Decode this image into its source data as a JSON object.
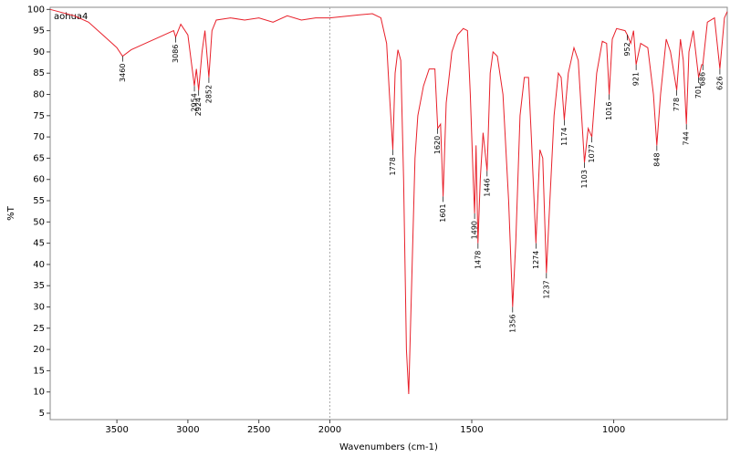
{
  "chart_data": {
    "type": "line",
    "title": "aohua4",
    "x_label": "Wavenumbers (cm-1)",
    "y_label": "%T",
    "xlim": [
      3970,
      600
    ],
    "x_scale_change": 2000,
    "x_expansion": 2,
    "xticks": [
      3500,
      3000,
      2500,
      2000,
      1500,
      1000
    ],
    "ylim": [
      3.5,
      100.5
    ],
    "yticks": [
      5,
      10,
      15,
      20,
      25,
      30,
      35,
      40,
      45,
      50,
      55,
      60,
      65,
      70,
      75,
      80,
      85,
      90,
      95,
      100
    ],
    "series": [
      {
        "name": "aohua4",
        "color": "#e8202a",
        "x": [
          3970,
          3800,
          3700,
          3600,
          3500,
          3460,
          3400,
          3300,
          3200,
          3100,
          3086,
          3050,
          3000,
          2954,
          2940,
          2924,
          2900,
          2880,
          2852,
          2830,
          2800,
          2700,
          2600,
          2500,
          2400,
          2300,
          2200,
          2100,
          2000,
          1900,
          1850,
          1820,
          1800,
          1790,
          1778,
          1770,
          1760,
          1750,
          1740,
          1730,
          1722,
          1710,
          1700,
          1690,
          1670,
          1650,
          1630,
          1620,
          1610,
          1601,
          1590,
          1570,
          1550,
          1530,
          1515,
          1505,
          1495,
          1490,
          1485,
          1478,
          1470,
          1460,
          1446,
          1435,
          1425,
          1410,
          1390,
          1370,
          1356,
          1345,
          1330,
          1315,
          1300,
          1290,
          1274,
          1260,
          1250,
          1237,
          1225,
          1210,
          1195,
          1185,
          1174,
          1160,
          1140,
          1125,
          1103,
          1090,
          1077,
          1060,
          1040,
          1025,
          1016,
          1005,
          990,
          960,
          952,
          940,
          930,
          921,
          905,
          880,
          860,
          848,
          835,
          815,
          800,
          778,
          765,
          755,
          744,
          735,
          720,
          701,
          690,
          686,
          670,
          645,
          626,
          610,
          600
        ],
        "values": [
          100,
          98.5,
          97,
          94,
          91,
          89,
          90.5,
          92,
          93.5,
          95,
          93.5,
          96.5,
          94,
          82,
          86,
          81,
          90,
          95,
          84,
          95,
          97.5,
          98,
          97.5,
          98,
          97,
          98.5,
          97.5,
          98,
          98,
          98.7,
          99,
          98,
          92,
          80,
          67,
          85,
          90.5,
          88,
          60,
          20,
          9.5,
          40,
          65,
          75,
          82,
          86,
          86,
          72,
          73,
          56,
          78,
          90,
          94,
          95.5,
          95,
          80,
          60,
          52,
          68,
          45,
          60,
          71,
          62,
          85,
          90,
          89,
          80,
          55,
          30,
          45,
          75,
          84,
          84,
          70,
          45,
          67,
          65,
          38,
          55,
          75,
          85,
          84,
          74,
          85,
          91,
          88,
          64,
          72,
          70,
          85,
          92.5,
          92,
          80,
          93,
          95.5,
          95,
          94,
          92,
          95,
          87,
          92,
          91,
          80,
          68,
          80,
          93,
          90,
          81,
          93,
          88,
          73,
          90,
          95,
          84,
          87,
          87,
          97,
          98,
          86,
          98,
          99.5
        ]
      }
    ],
    "peak_labels": [
      3460,
      3086,
      2954,
      2924,
      2852,
      1778,
      1620,
      1601,
      1490,
      1478,
      1446,
      1356,
      1274,
      1237,
      1174,
      1103,
      1077,
      1016,
      952,
      921,
      848,
      778,
      744,
      701,
      686,
      626
    ]
  }
}
